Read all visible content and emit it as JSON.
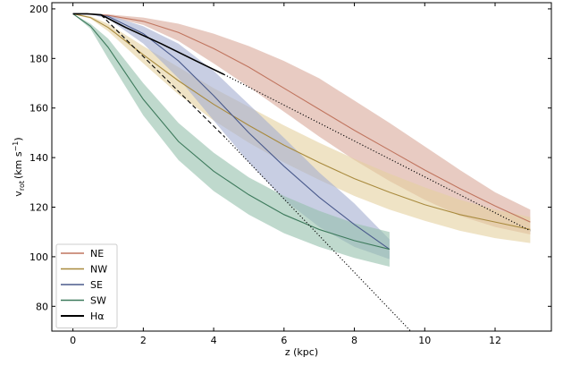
{
  "chart_data": {
    "type": "line",
    "xlabel": "z (kpc)",
    "ylabel_main": "v",
    "ylabel_sub": "rot",
    "ylabel_units": "(km s",
    "ylabel_exp": "−1",
    "ylabel_close": ")",
    "xlim": [
      -0.6,
      13.6
    ],
    "ylim": [
      70,
      202.5
    ],
    "xticks": [
      0,
      2,
      4,
      6,
      8,
      10,
      12
    ],
    "yticks": [
      80,
      100,
      120,
      140,
      160,
      180,
      200
    ],
    "legend_position": "lower-left",
    "series": [
      {
        "name": "NE",
        "color": "#c0755f",
        "band_color": "#d8a99a",
        "x": [
          0,
          0.5,
          1,
          2,
          3,
          4,
          5,
          6,
          7,
          8,
          9,
          10,
          11,
          12,
          13
        ],
        "y": [
          198,
          197.9,
          197.4,
          195,
          190.5,
          184,
          176.5,
          168,
          159.5,
          151,
          143,
          135,
          127.5,
          120.5,
          114
        ],
        "lower": [
          198,
          197.8,
          197,
          193.5,
          187,
          178,
          168.5,
          158.5,
          148.5,
          139,
          130.5,
          123,
          116.5,
          112,
          109
        ],
        "upper": [
          198,
          197.9,
          197.8,
          196.5,
          194,
          190,
          185,
          179,
          172,
          163,
          154,
          144.5,
          135,
          126,
          119
        ]
      },
      {
        "name": "NW",
        "color": "#a88a3d",
        "band_color": "#e5d19e",
        "x": [
          0,
          0.5,
          1,
          2,
          3,
          4,
          5,
          6,
          7,
          8,
          9,
          10,
          11,
          12,
          13
        ],
        "y": [
          198,
          196.5,
          192.5,
          181.5,
          171,
          161.5,
          153,
          145,
          138,
          131.5,
          126,
          121,
          117,
          114,
          111
        ],
        "lower": [
          198,
          196,
          191,
          178,
          165.5,
          155,
          146,
          138,
          131,
          124.5,
          119,
          114.5,
          110.5,
          107.5,
          105.5
        ],
        "upper": [
          198,
          197,
          194,
          185,
          176.5,
          168,
          160.5,
          153,
          146,
          139.5,
          133.5,
          128,
          123,
          119,
          116
        ]
      },
      {
        "name": "SE",
        "color": "#4a5a8c",
        "band_color": "#a3aed0",
        "x": [
          0,
          0.5,
          1,
          2,
          3,
          4,
          5,
          6,
          7,
          8,
          9
        ],
        "y": [
          198,
          197.9,
          197,
          190,
          179,
          165,
          150,
          136.5,
          124,
          113,
          103
        ],
        "lower": [
          198,
          197.8,
          196,
          186,
          172,
          155,
          138,
          123,
          112,
          104,
          99
        ],
        "upper": [
          198,
          197.9,
          197.6,
          193,
          186,
          175,
          161.5,
          148,
          134,
          121.5,
          107
        ]
      },
      {
        "name": "SW",
        "color": "#3d7a5c",
        "band_color": "#94c0ab",
        "x": [
          0,
          0.5,
          1,
          2,
          3,
          4,
          5,
          6,
          7,
          8,
          9
        ],
        "y": [
          198,
          193,
          184.5,
          163.5,
          146.5,
          134.5,
          125,
          117,
          111,
          106.5,
          103
        ],
        "lower": [
          198,
          192,
          180,
          157,
          139,
          126.5,
          117,
          109.5,
          104,
          99.5,
          96
        ],
        "upper": [
          198,
          194,
          188,
          170,
          154,
          142,
          132,
          124.5,
          118.5,
          113.5,
          110
        ]
      },
      {
        "name": "Hα",
        "color": "#000000",
        "x": [
          0,
          0.4,
          0.8,
          1.5,
          2.5,
          3.5,
          4.3
        ],
        "y": [
          198,
          198,
          197.6,
          192.5,
          186,
          179,
          173.5
        ]
      }
    ],
    "extrapolations": [
      {
        "style": "dotted",
        "color": "#000000",
        "x": [
          4.3,
          13
        ],
        "y": [
          173.5,
          110.5
        ]
      },
      {
        "style": "dashed",
        "color": "#000000",
        "x": [
          0.8,
          4.3
        ],
        "y": [
          197.6,
          148.5
        ]
      },
      {
        "style": "dotted",
        "color": "#000000",
        "x": [
          4.3,
          9.6
        ],
        "y": [
          148.5,
          70
        ]
      }
    ]
  }
}
